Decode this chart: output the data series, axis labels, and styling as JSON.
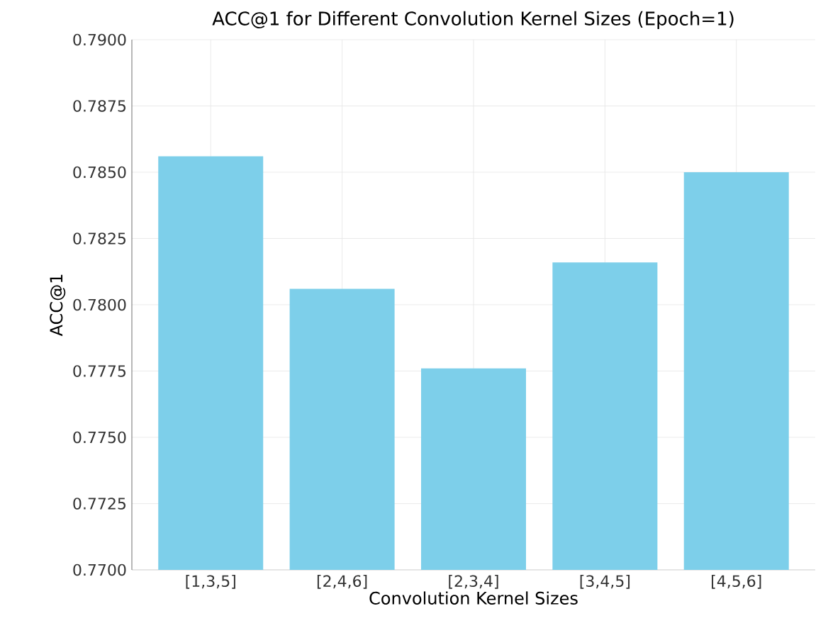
{
  "chart_data": {
    "type": "bar",
    "title": "ACC@1 for Different Convolution Kernel Sizes (Epoch=1)",
    "xlabel": "Convolution Kernel Sizes",
    "ylabel": "ACC@1",
    "categories": [
      "[1,3,5]",
      "[2,4,6]",
      "[2,3,4]",
      "[3,4,5]",
      "[4,5,6]"
    ],
    "values": [
      0.7856,
      0.7806,
      0.7776,
      0.7816,
      0.785
    ],
    "color": "#7dcfea",
    "ylim": [
      0.77,
      0.79
    ],
    "yticks": [
      {
        "value": 0.77,
        "label": "0.7700"
      },
      {
        "value": 0.7725,
        "label": "0.7725"
      },
      {
        "value": 0.775,
        "label": "0.7750"
      },
      {
        "value": 0.7775,
        "label": "0.7775"
      },
      {
        "value": 0.78,
        "label": "0.7800"
      },
      {
        "value": 0.7825,
        "label": "0.7825"
      },
      {
        "value": 0.785,
        "label": "0.7850"
      },
      {
        "value": 0.7875,
        "label": "0.7875"
      },
      {
        "value": 0.79,
        "label": "0.7900"
      }
    ],
    "grid": true
  }
}
